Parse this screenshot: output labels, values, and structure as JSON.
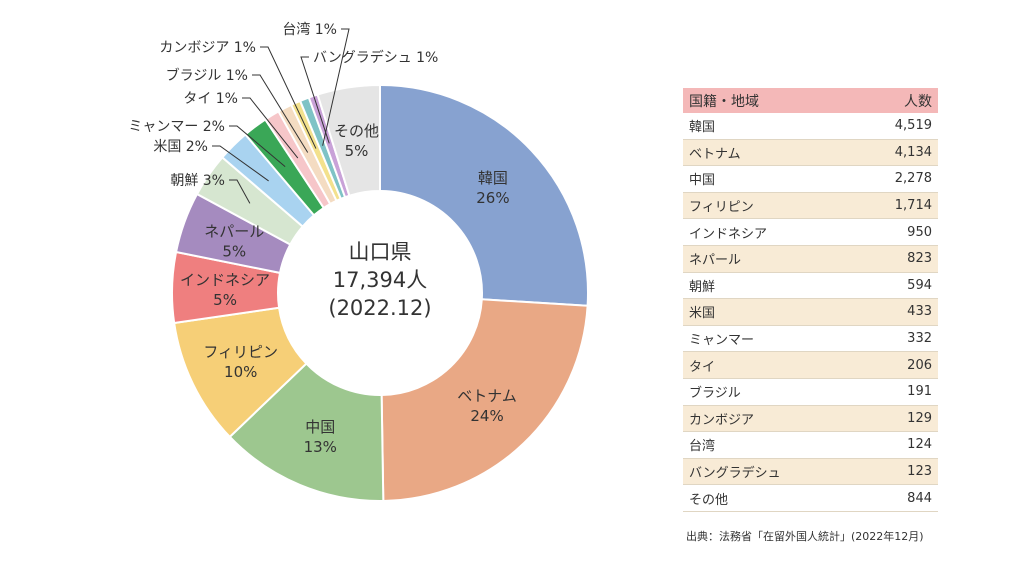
{
  "chart_data": {
    "type": "pie",
    "style": "donut",
    "center_text": [
      "山口県",
      "17,394人",
      "(2022.12)"
    ],
    "slices": [
      {
        "label": "韓国",
        "pct": "26%",
        "value": 4519,
        "color": "#87a2d0",
        "label_inside": true
      },
      {
        "label": "ベトナム",
        "pct": "24%",
        "value": 4134,
        "color": "#e9a885",
        "label_inside": true
      },
      {
        "label": "中国",
        "pct": "13%",
        "value": 2278,
        "color": "#9dc78f",
        "label_inside": true
      },
      {
        "label": "フィリピン",
        "pct": "10%",
        "value": 1714,
        "color": "#f6cf77",
        "label_inside": true
      },
      {
        "label": "インドネシア",
        "pct": "5%",
        "value": 950,
        "color": "#ef7f7f",
        "label_inside": true
      },
      {
        "label": "ネパール",
        "pct": "5%",
        "value": 823,
        "color": "#a58bbf",
        "label_inside": true
      },
      {
        "label": "朝鮮",
        "pct": "3%",
        "value": 594,
        "color": "#d6e6d0",
        "label_inside": false
      },
      {
        "label": "米国",
        "pct": "2%",
        "value": 433,
        "color": "#a9d3f0",
        "label_inside": false
      },
      {
        "label": "ミャンマー",
        "pct": "2%",
        "value": 332,
        "color": "#3aa757",
        "label_inside": false
      },
      {
        "label": "タイ",
        "pct": "1%",
        "value": 206,
        "color": "#f6c6c9",
        "label_inside": false
      },
      {
        "label": "ブラジル",
        "pct": "1%",
        "value": 191,
        "color": "#f4dcc2",
        "label_inside": false
      },
      {
        "label": "カンボジア",
        "pct": "1%",
        "value": 129,
        "color": "#f3e18d",
        "label_inside": false
      },
      {
        "label": "台湾",
        "pct": "1%",
        "value": 124,
        "color": "#7fc3c6",
        "label_inside": false
      },
      {
        "label": "バングラデシュ",
        "pct": "1%",
        "value": 123,
        "color": "#c9a2d8",
        "label_inside": false
      },
      {
        "label": "その他",
        "pct": "5%",
        "value": 844,
        "color": "#e5e5e5",
        "label_inside": true
      }
    ]
  },
  "table": {
    "headers": [
      "国籍・地域",
      "人数"
    ],
    "rows": [
      [
        "韓国",
        "4,519"
      ],
      [
        "ベトナム",
        "4,134"
      ],
      [
        "中国",
        "2,278"
      ],
      [
        "フィリピン",
        "1,714"
      ],
      [
        "インドネシア",
        "950"
      ],
      [
        "ネパール",
        "823"
      ],
      [
        "朝鮮",
        "594"
      ],
      [
        "米国",
        "433"
      ],
      [
        "ミャンマー",
        "332"
      ],
      [
        "タイ",
        "206"
      ],
      [
        "ブラジル",
        "191"
      ],
      [
        "カンボジア",
        "129"
      ],
      [
        "台湾",
        "124"
      ],
      [
        "バングラデシュ",
        "123"
      ],
      [
        "その他",
        "844"
      ]
    ]
  },
  "source": "出典：法務省「在留外国人統計」(2022年12月)"
}
